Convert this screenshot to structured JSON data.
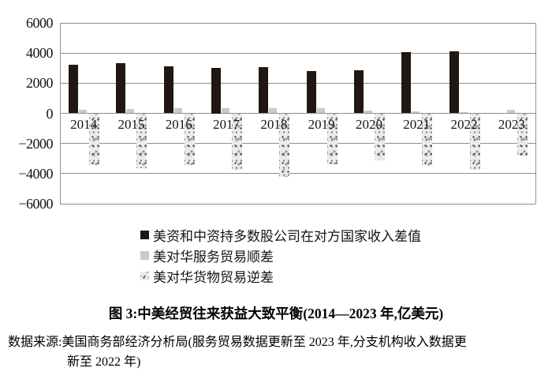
{
  "chart_data": {
    "type": "bar",
    "title": "图 3:中美经贸往来获益大致平衡(2014—2023 年,亿美元)",
    "categories": [
      "2014",
      "2015",
      "2016",
      "2017",
      "2018",
      "2019",
      "2020",
      "2021",
      "2022",
      "2023"
    ],
    "series": [
      {
        "name": "美资和中资持多数股公司在对方国家收入差值",
        "style": "solid-black",
        "values": [
          3200,
          3350,
          3100,
          3000,
          3050,
          2800,
          2850,
          4050,
          4100,
          null
        ]
      },
      {
        "name": "美对华服务贸易顺差",
        "style": "solid-gray",
        "values": [
          250,
          290,
          330,
          350,
          350,
          350,
          200,
          120,
          100,
          250
        ]
      },
      {
        "name": "美对华货物贸易逆差",
        "style": "speckled",
        "values": [
          -3450,
          -3650,
          -3450,
          -3750,
          -4200,
          -3400,
          -3100,
          -3500,
          -3750,
          -2800
        ]
      }
    ],
    "ylim": [
      -6000,
      6000
    ],
    "ytick_interval": 2000,
    "yticks": [
      "6000",
      "4000",
      "2000",
      "0",
      "−2000",
      "−4000",
      "−6000"
    ],
    "grid": true,
    "legend_position": "below",
    "colors": {
      "black_bar": "#211712",
      "gray_bar": "#c9c9c9",
      "speckle_base": "#ebebeb",
      "gridline": "#8f8f8f"
    }
  },
  "source": {
    "line1": "数据来源:美国商务部经济分析局(服务贸易数据更新至 2023 年,分支机构收入数据更",
    "line2": "新至 2022 年)"
  }
}
